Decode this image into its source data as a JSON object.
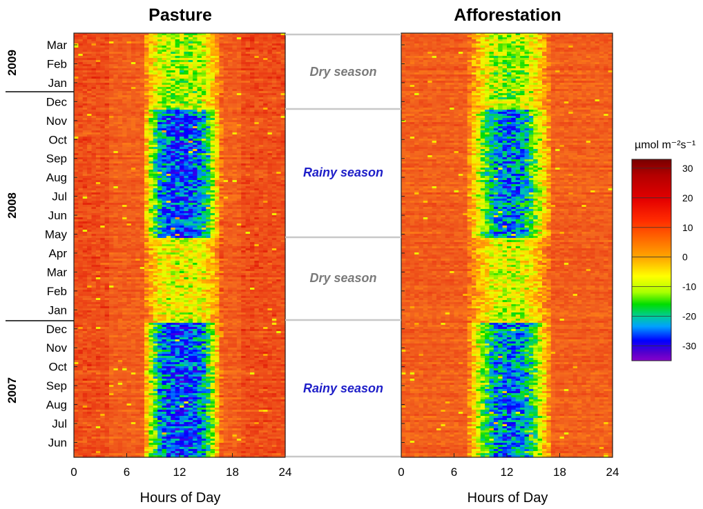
{
  "chart_data": {
    "type": "heatmap",
    "panels": [
      {
        "title": "Pasture",
        "xlabel": "Hours of Day",
        "xlim": [
          0,
          24
        ],
        "xticks": [
          0,
          6,
          12,
          18,
          24
        ]
      },
      {
        "title": "Afforestation",
        "xlabel": "Hours of Day",
        "xlim": [
          0,
          24
        ],
        "xticks": [
          0,
          6,
          12,
          18,
          24
        ]
      }
    ],
    "y_months": [
      "Mar",
      "Feb",
      "Jan",
      "Dec",
      "Nov",
      "Oct",
      "Sep",
      "Aug",
      "Jul",
      "Jun",
      "May",
      "Apr",
      "Mar",
      "Feb",
      "Jan",
      "Dec",
      "Nov",
      "Oct",
      "Sep",
      "Aug",
      "Jul",
      "Jun"
    ],
    "years": [
      "2009",
      "2008",
      "2007"
    ],
    "seasons": [
      {
        "label": "Dry season",
        "type": "dry"
      },
      {
        "label": "Rainy season",
        "type": "rainy"
      },
      {
        "label": "Dry season",
        "type": "dry"
      },
      {
        "label": "Rainy season",
        "type": "rainy"
      }
    ],
    "colorbar": {
      "unit_label": "µmol m⁻²s⁻¹",
      "ticks": [
        "30",
        "20",
        "10",
        "0",
        "-10",
        "-20",
        "-30"
      ],
      "range": [
        -35,
        33
      ]
    },
    "colors": {
      "dry_label": "#7a7a7a",
      "rainy_label": "#1e1ec8",
      "separator": "#c8c8c8",
      "background_flux": "#f06a1e"
    }
  }
}
